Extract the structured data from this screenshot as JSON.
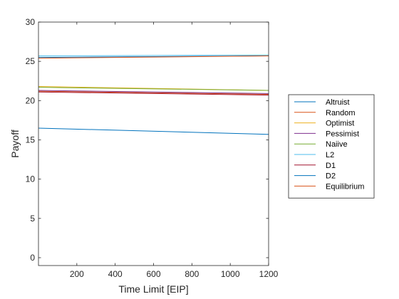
{
  "chart_data": {
    "type": "line",
    "title": "",
    "xlabel": "Time Limit [EIP]",
    "ylabel": "Payoff",
    "xlim": [
      0,
      1200
    ],
    "ylim": [
      -1,
      30
    ],
    "xticks": [
      200,
      400,
      600,
      800,
      1000,
      1200
    ],
    "yticks": [
      0,
      5,
      10,
      15,
      20,
      25,
      30
    ],
    "grid": false,
    "legend_position": "outside-right",
    "series": [
      {
        "name": "Altruist",
        "color": "#0072BD",
        "x": [
          1,
          1200
        ],
        "y": [
          16.5,
          15.7
        ]
      },
      {
        "name": "Random",
        "color": "#D95319",
        "x": [
          1,
          1200
        ],
        "y": [
          21.2,
          20.8
        ]
      },
      {
        "name": "Optimist",
        "color": "#EDB120",
        "x": [
          1,
          1200
        ],
        "y": [
          21.8,
          21.3
        ]
      },
      {
        "name": "Pessimist",
        "color": "#7E2F8E",
        "x": [
          1,
          1200
        ],
        "y": [
          21.3,
          20.9
        ]
      },
      {
        "name": "Naiive",
        "color": "#77AC30",
        "x": [
          1,
          1200
        ],
        "y": [
          21.7,
          21.3
        ]
      },
      {
        "name": "L2",
        "color": "#4DBEEE",
        "x": [
          1,
          1200
        ],
        "y": [
          25.7,
          25.8
        ]
      },
      {
        "name": "D1",
        "color": "#A2142F",
        "x": [
          1,
          1200
        ],
        "y": [
          21.1,
          20.7
        ]
      },
      {
        "name": "D2",
        "color": "#0072BD",
        "x": [
          1,
          1200
        ],
        "y": [
          25.5,
          25.7
        ]
      },
      {
        "name": "Equilibrium",
        "color": "#D95319",
        "x": [
          1,
          1200
        ],
        "y": [
          25.4,
          25.7
        ]
      }
    ]
  }
}
